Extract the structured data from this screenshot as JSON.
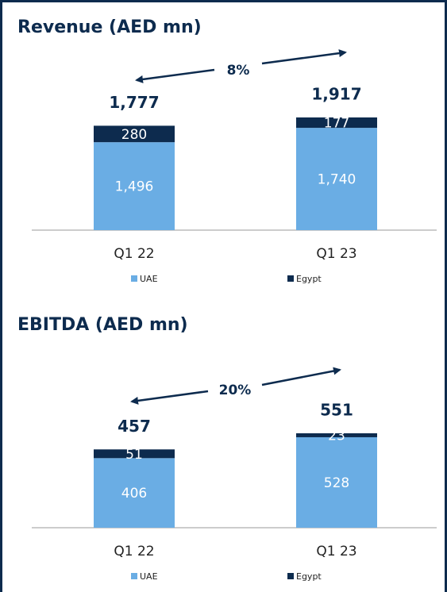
{
  "chart_data": [
    {
      "type": "stacked-bar",
      "title": "Revenue (AED mn)",
      "annotation": "8%",
      "categories": [
        "Q1 22",
        "Q1 23"
      ],
      "series": [
        {
          "name": "UAE",
          "color": "#6aade4",
          "values": [
            1496,
            1740
          ],
          "value_labels": [
            "1,496",
            "1,740"
          ]
        },
        {
          "name": "Egypt",
          "color": "#0d2b4e",
          "values": [
            280,
            177
          ]
        }
      ],
      "totals": [
        1777,
        1917
      ],
      "total_labels": [
        "1,777",
        "1,917"
      ]
    },
    {
      "type": "stacked-bar",
      "title": "EBITDA (AED mn)",
      "annotation": "20%",
      "categories": [
        "Q1 22",
        "Q1 23"
      ],
      "series": [
        {
          "name": "UAE",
          "color": "#6aade4",
          "values": [
            406,
            528
          ]
        },
        {
          "name": "Egypt",
          "color": "#0d2b4e",
          "values": [
            51,
            23
          ]
        }
      ],
      "totals": [
        457,
        551
      ]
    }
  ]
}
